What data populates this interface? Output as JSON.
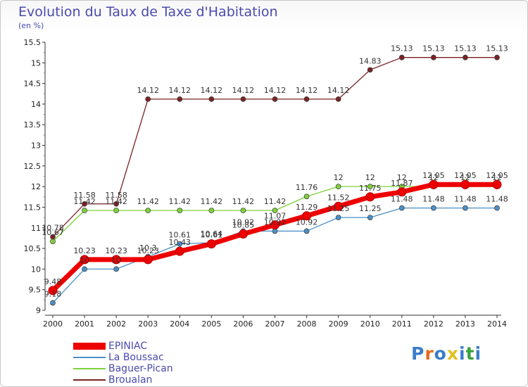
{
  "title": "Evolution du Taux de Taxe d'Habitation",
  "unit": "(en %)",
  "logo": {
    "text": "Proxiti",
    "colors": [
      "#3a7dc9",
      "#e36b1f",
      "#3a7dc9",
      "#e0c020",
      "#3a7dc9",
      "#3aa03a",
      "#3a7dc9"
    ]
  },
  "chart_data": {
    "type": "line",
    "x": [
      "2000",
      "2001",
      "2002",
      "2003",
      "2004",
      "2005",
      "2006",
      "2007",
      "2008",
      "2009",
      "2010",
      "2011",
      "2012",
      "2013",
      "2014"
    ],
    "ylim": [
      9,
      15.5
    ],
    "yticks": [
      "9",
      "9.5",
      "10",
      "10.5",
      "11",
      "11.5",
      "12",
      "12.5",
      "13",
      "13.5",
      "14",
      "14.5",
      "15",
      "15.5"
    ],
    "grid": false,
    "legend_position": "bottom-left",
    "series": [
      {
        "name": "EPINIAC",
        "color": "#ee0000",
        "width": 7,
        "values": [
          9.48,
          10.23,
          10.23,
          10.23,
          10.43,
          10.61,
          10.85,
          11.07,
          11.29,
          11.52,
          11.75,
          11.87,
          12.05,
          12.05,
          12.05
        ]
      },
      {
        "name": "La Boussac",
        "color": "#4a90c8",
        "width": 1.3,
        "values": [
          9.18,
          10.0,
          10.0,
          10.3,
          10.61,
          10.64,
          10.92,
          10.92,
          10.92,
          11.25,
          11.25,
          11.48,
          11.48,
          11.48,
          11.48
        ]
      },
      {
        "name": "Baguer-Pican",
        "color": "#7ed23a",
        "width": 1.3,
        "values": [
          10.67,
          11.42,
          11.42,
          11.42,
          11.42,
          11.42,
          11.42,
          11.42,
          11.76,
          12.0,
          12.0,
          12.0,
          12.0,
          12.0,
          12.0
        ]
      },
      {
        "name": "Broualan",
        "color": "#7a2222",
        "width": 1.3,
        "values": [
          10.78,
          11.58,
          11.58,
          14.12,
          14.12,
          14.12,
          14.12,
          14.12,
          14.12,
          14.12,
          14.83,
          15.13,
          15.13,
          15.13,
          15.13
        ]
      }
    ],
    "data_labels": [
      {
        "x": "2000",
        "text": "10.78"
      },
      {
        "x": "2000",
        "text": "10.67"
      },
      {
        "x": "2000",
        "text": "9.48"
      },
      {
        "x": "2000",
        "text": "9.18"
      },
      {
        "x": "2001",
        "text": "11.58"
      },
      {
        "x": "2001",
        "text": "11.42"
      },
      {
        "x": "2001",
        "text": "10.23"
      },
      {
        "x": "2001",
        "text": "10"
      },
      {
        "x": "2002",
        "text": "11.58"
      },
      {
        "x": "2002",
        "text": "11.42"
      },
      {
        "x": "2002",
        "text": "10.23"
      },
      {
        "x": "2002",
        "text": "10"
      },
      {
        "x": "2003",
        "text": "14.12"
      },
      {
        "x": "2003",
        "text": "11.42"
      },
      {
        "x": "2003",
        "text": "10.3"
      },
      {
        "x": "2003",
        "text": "10.23"
      },
      {
        "x": "2004",
        "text": "14.12"
      },
      {
        "x": "2004",
        "text": "11.42"
      },
      {
        "x": "2004",
        "text": "10.61"
      },
      {
        "x": "2004",
        "text": "10.43"
      },
      {
        "x": "2005",
        "text": "14.12"
      },
      {
        "x": "2005",
        "text": "11.42"
      },
      {
        "x": "2005",
        "text": "10.64"
      },
      {
        "x": "2005",
        "text": "10.61"
      },
      {
        "x": "2006",
        "text": "14.12"
      },
      {
        "x": "2006",
        "text": "11.42"
      },
      {
        "x": "2006",
        "text": "10.92"
      },
      {
        "x": "2006",
        "text": "10.85"
      },
      {
        "x": "2007",
        "text": "14.12"
      },
      {
        "x": "2007",
        "text": "11.42"
      },
      {
        "x": "2007",
        "text": "11.07"
      },
      {
        "x": "2007",
        "text": "10.92"
      },
      {
        "x": "2008",
        "text": "14.12"
      },
      {
        "x": "2008",
        "text": "11.76"
      },
      {
        "x": "2008",
        "text": "11.29"
      },
      {
        "x": "2008",
        "text": "10.92"
      },
      {
        "x": "2009",
        "text": "14.12"
      },
      {
        "x": "2009",
        "text": "12"
      },
      {
        "x": "2009",
        "text": "11.52"
      },
      {
        "x": "2009",
        "text": "11.25"
      },
      {
        "x": "2010",
        "text": "14.83"
      },
      {
        "x": "2010",
        "text": "12"
      },
      {
        "x": "2010",
        "text": "11.75"
      },
      {
        "x": "2010",
        "text": "11.25"
      },
      {
        "x": "2011",
        "text": "15.13"
      },
      {
        "x": "2011",
        "text": "12"
      },
      {
        "x": "2011",
        "text": "11.87"
      },
      {
        "x": "2011",
        "text": "11.48"
      },
      {
        "x": "2012",
        "text": "15.13"
      },
      {
        "x": "2012",
        "text": "12.05"
      },
      {
        "x": "2012",
        "text": "12"
      },
      {
        "x": "2012",
        "text": "11.48"
      },
      {
        "x": "2013",
        "text": "15.13"
      },
      {
        "x": "2013",
        "text": "12.05"
      },
      {
        "x": "2013",
        "text": "12"
      },
      {
        "x": "2013",
        "text": "11.48"
      },
      {
        "x": "2014",
        "text": "15.13"
      },
      {
        "x": "2014",
        "text": "12.05"
      },
      {
        "x": "2014",
        "text": "12"
      },
      {
        "x": "2014",
        "text": "11.48"
      }
    ]
  }
}
